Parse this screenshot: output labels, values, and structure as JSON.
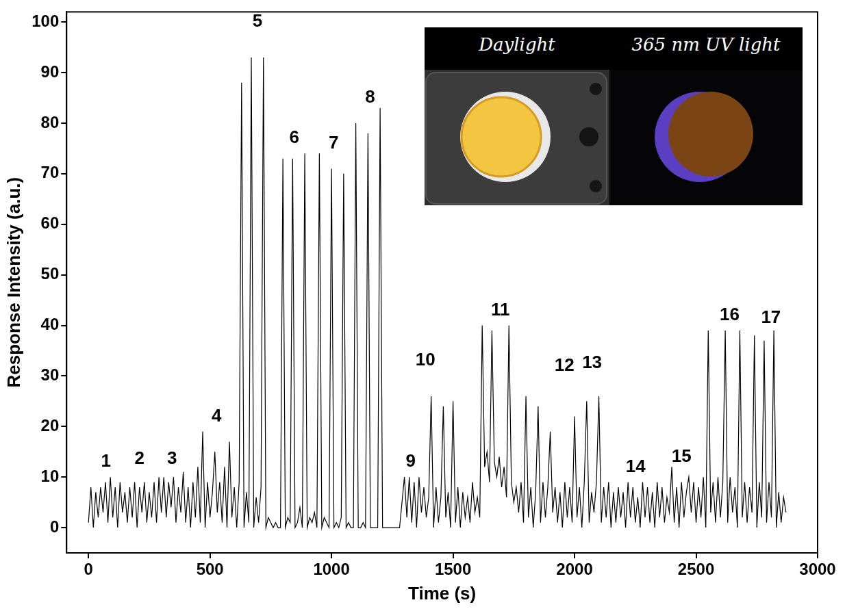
{
  "chart_data": {
    "type": "line",
    "x_label": "Time (s)",
    "y_label": "Response Intensity (a.u.)",
    "color": "#000000",
    "grid": false,
    "xlim": [
      -90,
      3000
    ],
    "xticks": [
      0,
      500,
      1000,
      1500,
      2000,
      2500,
      3000
    ],
    "ylim": [
      -5,
      102
    ],
    "yticks": [
      0,
      10,
      20,
      30,
      40,
      50,
      60,
      70,
      80,
      90,
      100
    ],
    "x": [
      0,
      10,
      20,
      30,
      40,
      50,
      60,
      70,
      80,
      90,
      100,
      110,
      120,
      130,
      140,
      150,
      160,
      170,
      180,
      190,
      200,
      210,
      220,
      230,
      240,
      250,
      260,
      270,
      280,
      290,
      300,
      310,
      320,
      330,
      340,
      350,
      360,
      370,
      380,
      390,
      400,
      410,
      420,
      430,
      440,
      450,
      460,
      470,
      480,
      490,
      500,
      510,
      520,
      530,
      540,
      550,
      560,
      570,
      580,
      590,
      600,
      610,
      620,
      630,
      640,
      650,
      660,
      670,
      680,
      690,
      700,
      710,
      720,
      730,
      740,
      750,
      760,
      770,
      780,
      790,
      800,
      810,
      820,
      830,
      840,
      850,
      860,
      870,
      880,
      890,
      900,
      910,
      920,
      930,
      940,
      950,
      960,
      970,
      980,
      990,
      1000,
      1010,
      1020,
      1030,
      1040,
      1050,
      1060,
      1070,
      1080,
      1090,
      1100,
      1110,
      1120,
      1130,
      1140,
      1150,
      1160,
      1170,
      1180,
      1190,
      1200,
      1210,
      1220,
      1230,
      1240,
      1250,
      1260,
      1270,
      1280,
      1290,
      1300,
      1310,
      1320,
      1330,
      1340,
      1350,
      1360,
      1370,
      1380,
      1390,
      1400,
      1410,
      1420,
      1430,
      1440,
      1450,
      1460,
      1470,
      1480,
      1490,
      1500,
      1510,
      1520,
      1530,
      1540,
      1550,
      1560,
      1570,
      1580,
      1590,
      1600,
      1610,
      1620,
      1630,
      1640,
      1650,
      1660,
      1670,
      1680,
      1690,
      1700,
      1710,
      1720,
      1730,
      1740,
      1750,
      1760,
      1770,
      1780,
      1790,
      1800,
      1810,
      1820,
      1830,
      1840,
      1850,
      1860,
      1870,
      1880,
      1890,
      1900,
      1910,
      1920,
      1930,
      1940,
      1950,
      1960,
      1970,
      1980,
      1990,
      2000,
      2010,
      2020,
      2030,
      2040,
      2050,
      2060,
      2070,
      2080,
      2090,
      2100,
      2110,
      2120,
      2130,
      2140,
      2150,
      2160,
      2170,
      2180,
      2190,
      2200,
      2210,
      2220,
      2230,
      2240,
      2250,
      2260,
      2270,
      2280,
      2290,
      2300,
      2310,
      2320,
      2330,
      2340,
      2350,
      2360,
      2370,
      2380,
      2390,
      2400,
      2410,
      2420,
      2430,
      2440,
      2450,
      2460,
      2470,
      2480,
      2490,
      2500,
      2510,
      2520,
      2530,
      2540,
      2550,
      2560,
      2570,
      2580,
      2590,
      2600,
      2610,
      2620,
      2630,
      2640,
      2650,
      2660,
      2670,
      2680,
      2690,
      2700,
      2710,
      2720,
      2730,
      2740,
      2750,
      2760,
      2770,
      2780,
      2790,
      2800,
      2810,
      2820,
      2830,
      2840,
      2850,
      2860,
      2870
    ],
    "values": [
      1,
      8,
      0,
      7,
      2,
      8,
      3,
      9,
      1,
      10,
      2,
      8,
      0,
      9,
      3,
      7,
      1,
      8,
      2,
      9,
      0,
      8,
      3,
      9,
      1,
      7,
      2,
      9,
      1,
      10,
      3,
      10,
      2,
      9,
      4,
      10,
      1,
      8,
      3,
      11,
      1,
      8,
      0,
      9,
      2,
      12,
      1,
      19,
      0,
      9,
      2,
      7,
      15,
      3,
      9,
      1,
      12,
      0,
      17,
      2,
      8,
      0,
      9,
      88,
      0,
      7,
      1,
      93,
      0,
      6,
      1,
      8,
      93,
      0,
      2,
      1,
      0,
      1,
      0,
      0,
      73,
      0,
      2,
      1,
      73,
      0,
      1,
      4,
      0,
      74,
      0,
      2,
      1,
      3,
      0,
      74,
      0,
      2,
      1,
      0,
      71,
      0,
      1,
      0,
      2,
      70,
      0,
      1,
      0,
      0,
      80,
      0,
      0,
      1,
      0,
      78,
      0,
      0,
      0,
      0,
      83,
      0,
      0,
      0,
      0,
      0,
      0,
      0,
      0,
      5,
      10,
      2,
      10,
      1,
      9,
      0,
      10,
      3,
      8,
      2,
      6,
      26,
      0,
      8,
      1,
      6,
      24,
      2,
      7,
      0,
      25,
      1,
      8,
      0,
      7,
      2,
      6,
      1,
      9,
      3,
      6,
      2,
      40,
      12,
      15,
      9,
      39,
      13,
      10,
      14,
      8,
      12,
      6,
      40,
      9,
      5,
      8,
      3,
      9,
      1,
      26,
      2,
      8,
      0,
      7,
      24,
      1,
      9,
      2,
      8,
      19,
      3,
      8,
      1,
      7,
      0,
      9,
      2,
      8,
      1,
      22,
      2,
      8,
      0,
      9,
      25,
      1,
      7,
      3,
      9,
      26,
      1,
      8,
      2,
      9,
      0,
      7,
      1,
      8,
      2,
      7,
      0,
      9,
      2,
      8,
      1,
      6,
      0,
      9,
      2,
      8,
      1,
      7,
      0,
      9,
      2,
      8,
      1,
      6,
      3,
      12,
      1,
      8,
      0,
      9,
      2,
      7,
      10,
      3,
      9,
      1,
      8,
      2,
      10,
      0,
      39,
      3,
      9,
      1,
      10,
      2,
      9,
      39,
      1,
      10,
      3,
      8,
      0,
      39,
      2,
      9,
      1,
      8,
      3,
      38,
      0,
      9,
      2,
      37,
      1,
      9,
      2,
      39,
      0,
      7,
      1,
      6,
      3
    ],
    "annotations": [
      {
        "text": "1",
        "x": 72,
        "y": 13
      },
      {
        "text": "2",
        "x": 210,
        "y": 13.5
      },
      {
        "text": "3",
        "x": 344,
        "y": 13.5
      },
      {
        "text": "4",
        "x": 527,
        "y": 22
      },
      {
        "text": "5",
        "x": 695,
        "y": 100
      },
      {
        "text": "6",
        "x": 847,
        "y": 77
      },
      {
        "text": "7",
        "x": 1009,
        "y": 76
      },
      {
        "text": "8",
        "x": 1159,
        "y": 85
      },
      {
        "text": "9",
        "x": 1326,
        "y": 13
      },
      {
        "text": "10",
        "x": 1386,
        "y": 33
      },
      {
        "text": "11",
        "x": 1695,
        "y": 43
      },
      {
        "text": "12",
        "x": 1958,
        "y": 32
      },
      {
        "text": "13",
        "x": 2072,
        "y": 32.5
      },
      {
        "text": "14",
        "x": 2251,
        "y": 12
      },
      {
        "text": "15",
        "x": 2440,
        "y": 14
      },
      {
        "text": "16",
        "x": 2638,
        "y": 42
      },
      {
        "text": "17",
        "x": 2808,
        "y": 41.5
      }
    ],
    "inset_labels": [
      "Daylight",
      "365 nm UV light"
    ]
  }
}
